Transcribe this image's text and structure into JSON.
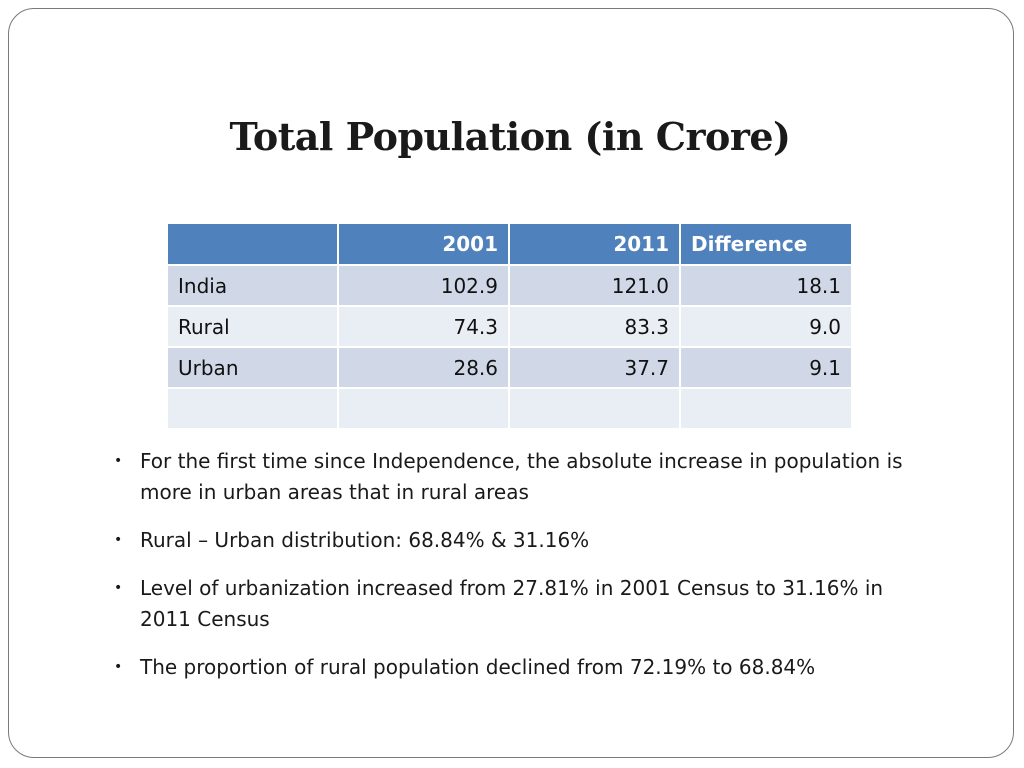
{
  "slide": {
    "title": "Total Population (in Crore)"
  },
  "table": {
    "headers": [
      "",
      "2001",
      "2011",
      "Difference"
    ],
    "rows": [
      {
        "label": "India",
        "y2001": "102.9",
        "y2011": "121.0",
        "diff": "18.1"
      },
      {
        "label": "Rural",
        "y2001": "74.3",
        "y2011": "83.3",
        "diff": "9.0"
      },
      {
        "label": "Urban",
        "y2001": "28.6",
        "y2011": "37.7",
        "diff": "9.1"
      },
      {
        "label": "",
        "y2001": "",
        "y2011": "",
        "diff": ""
      }
    ]
  },
  "bullets": [
    {
      "marker": "•",
      "text": "For the first time since Independence, the absolute increase in population is more in urban areas that in rural areas"
    },
    {
      "marker": "•",
      "text": " Rural – Urban distribution: 68.84% & 31.16%"
    },
    {
      "marker": "•",
      "text": " Level of urbanization increased from 27.81% in 2001 Census to 31.16% in 2011 Census"
    },
    {
      "marker": "•",
      "text": "The proportion of rural population declined from 72.19% to 68.84%"
    }
  ],
  "colors": {
    "header_bg": "#4f81bd",
    "row_odd_bg": "#d0d8e8",
    "row_even_bg": "#e9edf4"
  }
}
